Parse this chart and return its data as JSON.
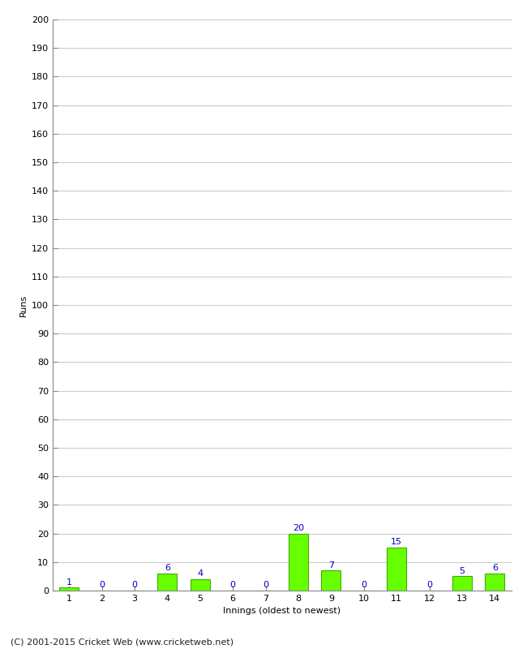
{
  "xlabel": "Innings (oldest to newest)",
  "ylabel": "Runs",
  "categories": [
    1,
    2,
    3,
    4,
    5,
    6,
    7,
    8,
    9,
    10,
    11,
    12,
    13,
    14
  ],
  "values": [
    1,
    0,
    0,
    6,
    4,
    0,
    0,
    20,
    7,
    0,
    15,
    0,
    5,
    6
  ],
  "bar_color": "#66ff00",
  "bar_edge_color": "#44aa00",
  "label_color": "#0000cc",
  "ylim": [
    0,
    200
  ],
  "yticks": [
    0,
    10,
    20,
    30,
    40,
    50,
    60,
    70,
    80,
    90,
    100,
    110,
    120,
    130,
    140,
    150,
    160,
    170,
    180,
    190,
    200
  ],
  "footer": "(C) 2001-2015 Cricket Web (www.cricketweb.net)",
  "background_color": "#ffffff",
  "grid_color": "#cccccc",
  "label_fontsize": 8,
  "axis_fontsize": 8,
  "ylabel_fontsize": 8,
  "footer_fontsize": 8,
  "bar_width": 0.6
}
